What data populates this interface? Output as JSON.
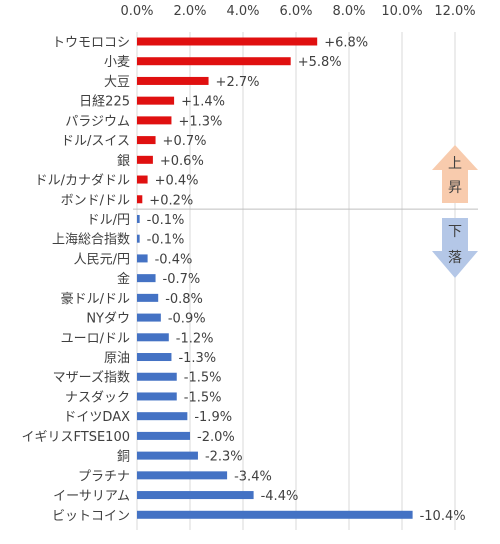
{
  "chart_data": {
    "type": "bar",
    "orientation": "horizontal",
    "x_ticks": [
      "0.0%",
      "2.0%",
      "4.0%",
      "6.0%",
      "8.0%",
      "10.0%",
      "12.0%"
    ],
    "xlim": [
      0,
      12
    ],
    "grid": true,
    "categories": [
      "トウモロコシ",
      "小麦",
      "大豆",
      "日経225",
      "パラジウム",
      "ドル/スイス",
      "銀",
      "ドル/カナダドル",
      "ボンド/ドル",
      "ドル/円",
      "上海総合指数",
      "人民元/円",
      "金",
      "豪ドル/ドル",
      "NYダウ",
      "ユーロ/ドル",
      "原油",
      "マザーズ指数",
      "ナスダック",
      "ドイツDAX",
      "イギリスFTSE100",
      "銅",
      "プラチナ",
      "イーサリアム",
      "ビットコイン"
    ],
    "values": [
      6.8,
      5.8,
      2.7,
      1.4,
      1.3,
      0.7,
      0.6,
      0.4,
      0.2,
      -0.1,
      -0.1,
      -0.4,
      -0.7,
      -0.8,
      -0.9,
      -1.2,
      -1.3,
      -1.5,
      -1.5,
      -1.9,
      -2.0,
      -2.3,
      -3.4,
      -4.4,
      -10.4
    ],
    "data_labels": [
      "+6.8%",
      "+5.8%",
      "+2.7%",
      "+1.4%",
      "+1.3%",
      "+0.7%",
      "+0.6%",
      "+0.4%",
      "+0.2%",
      "-0.1%",
      "-0.1%",
      "-0.4%",
      "-0.7%",
      "-0.8%",
      "-0.9%",
      "-1.2%",
      "-1.3%",
      "-1.5%",
      "-1.5%",
      "-1.9%",
      "-2.0%",
      "-2.3%",
      "-3.4%",
      "-4.4%",
      "-10.4%"
    ],
    "colors": {
      "positive": "#E01010",
      "negative": "#4472C4",
      "grid": "#D9D9D9",
      "text": "#404040",
      "separator": "#BFBFBF"
    },
    "legend_arrows": {
      "up": {
        "chars": [
          "上",
          "昇"
        ],
        "color": "#F8CBAD"
      },
      "down": {
        "chars": [
          "下",
          "落"
        ],
        "color": "#B4C7E7"
      }
    }
  }
}
